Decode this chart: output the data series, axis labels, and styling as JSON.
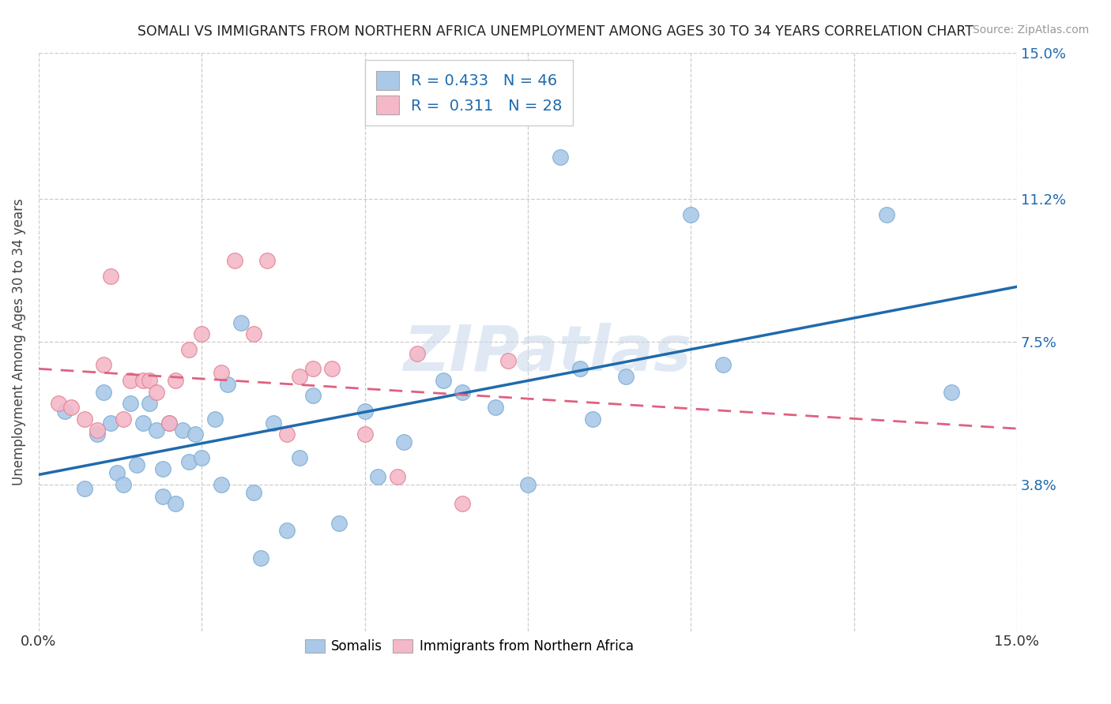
{
  "title": "SOMALI VS IMMIGRANTS FROM NORTHERN AFRICA UNEMPLOYMENT AMONG AGES 30 TO 34 YEARS CORRELATION CHART",
  "source": "Source: ZipAtlas.com",
  "ylabel": "Unemployment Among Ages 30 to 34 years",
  "xlim": [
    0.0,
    0.15
  ],
  "ylim": [
    0.0,
    0.15
  ],
  "yticks": [
    0.038,
    0.075,
    0.112,
    0.15
  ],
  "ytick_labels": [
    "3.8%",
    "7.5%",
    "11.2%",
    "15.0%"
  ],
  "background_color": "#ffffff",
  "grid_color": "#cccccc",
  "watermark": "ZIPatlas",
  "somali_color": "#aac9e8",
  "somali_edge_color": "#7aaad0",
  "northern_africa_color": "#f4b8c8",
  "northern_africa_edge_color": "#e08090",
  "trendline_somali_color": "#1f6aad",
  "trendline_na_color": "#e06080",
  "tick_color": "#1f6aad",
  "legend_R_somali": "0.433",
  "legend_N_somali": "46",
  "legend_R_na": "0.311",
  "legend_N_na": "28",
  "somali_x": [
    0.004,
    0.007,
    0.009,
    0.01,
    0.011,
    0.012,
    0.013,
    0.014,
    0.015,
    0.016,
    0.017,
    0.018,
    0.019,
    0.019,
    0.02,
    0.021,
    0.022,
    0.023,
    0.024,
    0.025,
    0.027,
    0.028,
    0.029,
    0.031,
    0.033,
    0.034,
    0.036,
    0.038,
    0.04,
    0.042,
    0.046,
    0.05,
    0.052,
    0.056,
    0.062,
    0.065,
    0.07,
    0.075,
    0.08,
    0.083,
    0.085,
    0.09,
    0.1,
    0.105,
    0.13,
    0.14
  ],
  "somali_y": [
    0.057,
    0.037,
    0.051,
    0.062,
    0.054,
    0.041,
    0.038,
    0.059,
    0.043,
    0.054,
    0.059,
    0.052,
    0.042,
    0.035,
    0.054,
    0.033,
    0.052,
    0.044,
    0.051,
    0.045,
    0.055,
    0.038,
    0.064,
    0.08,
    0.036,
    0.019,
    0.054,
    0.026,
    0.045,
    0.061,
    0.028,
    0.057,
    0.04,
    0.049,
    0.065,
    0.062,
    0.058,
    0.038,
    0.123,
    0.068,
    0.055,
    0.066,
    0.108,
    0.069,
    0.108,
    0.062
  ],
  "na_x": [
    0.003,
    0.005,
    0.007,
    0.009,
    0.01,
    0.011,
    0.013,
    0.014,
    0.016,
    0.017,
    0.018,
    0.02,
    0.021,
    0.023,
    0.025,
    0.028,
    0.03,
    0.033,
    0.035,
    0.038,
    0.04,
    0.042,
    0.045,
    0.05,
    0.055,
    0.058,
    0.065,
    0.072
  ],
  "na_y": [
    0.059,
    0.058,
    0.055,
    0.052,
    0.069,
    0.092,
    0.055,
    0.065,
    0.065,
    0.065,
    0.062,
    0.054,
    0.065,
    0.073,
    0.077,
    0.067,
    0.096,
    0.077,
    0.096,
    0.051,
    0.066,
    0.068,
    0.068,
    0.051,
    0.04,
    0.072,
    0.033,
    0.07
  ]
}
